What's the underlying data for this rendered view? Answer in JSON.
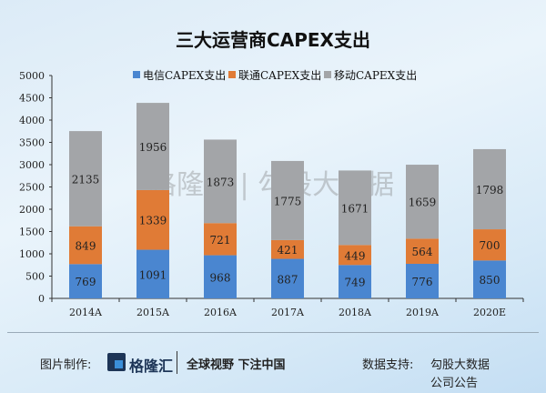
{
  "chart_data": {
    "type": "bar",
    "stacked": true,
    "title": "三大运营商CAPEX支出",
    "categories": [
      "2014A",
      "2015A",
      "2016A",
      "2017A",
      "2018A",
      "2019A",
      "2020E"
    ],
    "series": [
      {
        "name": "电信CAPEX支出",
        "color": "#4a86d0",
        "values": [
          769,
          1091,
          968,
          887,
          749,
          776,
          850
        ]
      },
      {
        "name": "联通CAPEX支出",
        "color": "#e07b36",
        "values": [
          849,
          1339,
          721,
          421,
          449,
          564,
          700
        ]
      },
      {
        "name": "移动CAPEX支出",
        "color": "#a3a5a8",
        "values": [
          2135,
          1956,
          1873,
          1775,
          1671,
          1659,
          1798
        ]
      }
    ],
    "ylim": [
      0,
      5000
    ],
    "yticks": [
      "0",
      "500",
      "1000",
      "1500",
      "2000",
      "2500",
      "3000",
      "3500",
      "4000",
      "4500",
      "5000"
    ],
    "legend": "top",
    "grid": false
  },
  "watermark": "格隆汇 | 勾股大数据",
  "footer": {
    "made_by_label": "图片制作:",
    "logo_text": "格隆汇",
    "slogan": "全球视野 下注中国",
    "data_support_label": "数据支持:",
    "sources": [
      "勾股大数据",
      "公司公告"
    ]
  }
}
